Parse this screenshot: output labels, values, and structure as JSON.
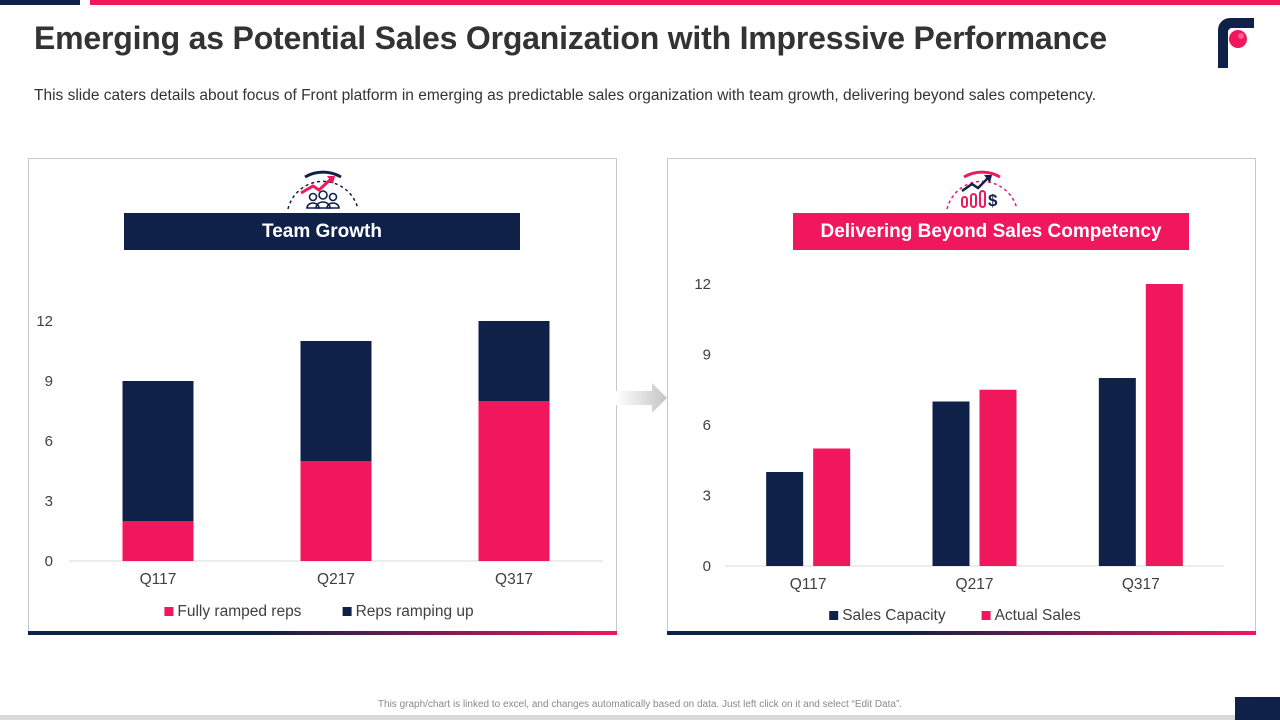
{
  "page": {
    "title": "Emerging as Potential Sales Organization with Impressive Performance",
    "subtitle": "This slide caters details about focus of Front platform in emerging as predictable sales organization with team growth, delivering beyond sales competency.",
    "footer_note": "This graph/chart is linked to excel, and changes automatically based on data. Just left click on it and select “Edit Data”.",
    "logo_icon": "front-logo-icon",
    "arrow_icon": "right-arrow-icon"
  },
  "colors": {
    "navy": "#0f2148",
    "pink": "#f0175c"
  },
  "panels": {
    "left": {
      "banner": "Team Growth",
      "icon": "team-growth-icon"
    },
    "right": {
      "banner": "Delivering Beyond Sales Competency",
      "icon": "sales-growth-icon"
    }
  },
  "chart_data": [
    {
      "type": "bar",
      "stacked": true,
      "categories": [
        "Q117",
        "Q217",
        "Q317"
      ],
      "series": [
        {
          "name": "Fully ramped reps",
          "color": "#f0175c",
          "values": [
            2,
            5,
            8
          ]
        },
        {
          "name": "Reps ramping up",
          "color": "#0f2148",
          "values": [
            7,
            6,
            4
          ]
        }
      ],
      "ylim": [
        0,
        12
      ],
      "yticks": [
        0,
        3,
        6,
        9,
        12
      ],
      "legend": "bottom",
      "grid": false
    },
    {
      "type": "bar",
      "stacked": false,
      "categories": [
        "Q117",
        "Q217",
        "Q317"
      ],
      "series": [
        {
          "name": "Sales Capacity",
          "color": "#0f2148",
          "values": [
            4,
            7,
            8
          ]
        },
        {
          "name": "Actual Sales",
          "color": "#f0175c",
          "values": [
            5,
            7.5,
            12
          ]
        }
      ],
      "ylim": [
        0,
        12
      ],
      "yticks": [
        0,
        3,
        6,
        9,
        12
      ],
      "legend": "bottom",
      "grid": false
    }
  ]
}
